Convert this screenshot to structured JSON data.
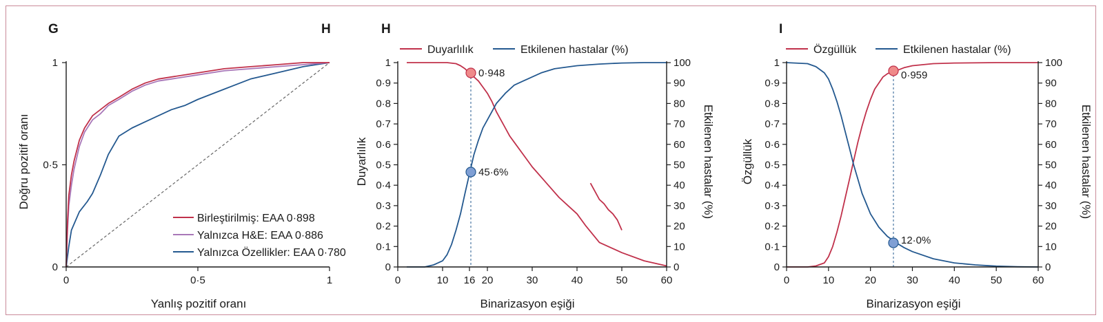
{
  "colors": {
    "red": "#c0304a",
    "purple": "#a877b8",
    "blue": "#23588f",
    "diag": "#666666",
    "marker_red": "#ef8a8a",
    "marker_blue": "#7f9fd4",
    "frame": "#c98a99"
  },
  "chart_data": [
    {
      "panel": "G",
      "type": "line",
      "title": "",
      "xlabel": "Yanlış pozitif oranı",
      "ylabel": "Doğru pozitif oranı",
      "xlim": [
        0,
        1
      ],
      "ylim": [
        0,
        1
      ],
      "xticks": [
        "0",
        "0·5",
        "1"
      ],
      "yticks": [
        "0",
        "0·5",
        "1"
      ],
      "legend_position": "bottom-right",
      "reference_line": "diagonal",
      "series": [
        {
          "name": "Birleştirilmiş: EAA 0·898",
          "color": "#c0304a",
          "x": [
            0,
            0.005,
            0.01,
            0.02,
            0.03,
            0.05,
            0.07,
            0.1,
            0.13,
            0.16,
            0.2,
            0.25,
            0.3,
            0.35,
            0.4,
            0.5,
            0.6,
            0.7,
            0.8,
            0.9,
            1.0
          ],
          "y": [
            0,
            0.22,
            0.35,
            0.45,
            0.52,
            0.62,
            0.68,
            0.74,
            0.77,
            0.8,
            0.83,
            0.87,
            0.9,
            0.92,
            0.93,
            0.95,
            0.97,
            0.98,
            0.99,
            1.0,
            1.0
          ]
        },
        {
          "name": "Yalnızca H&E: EAA 0·886",
          "color": "#a877b8",
          "x": [
            0,
            0.005,
            0.01,
            0.02,
            0.03,
            0.05,
            0.07,
            0.1,
            0.13,
            0.16,
            0.2,
            0.25,
            0.3,
            0.35,
            0.4,
            0.5,
            0.6,
            0.7,
            0.8,
            0.9,
            1.0
          ],
          "y": [
            0,
            0.18,
            0.3,
            0.4,
            0.48,
            0.59,
            0.66,
            0.72,
            0.75,
            0.79,
            0.82,
            0.86,
            0.89,
            0.91,
            0.92,
            0.94,
            0.96,
            0.97,
            0.98,
            0.99,
            1.0
          ]
        },
        {
          "name": "Yalnızca Özellikler: EAA 0·780",
          "color": "#23588f",
          "x": [
            0,
            0.01,
            0.02,
            0.05,
            0.08,
            0.1,
            0.13,
            0.16,
            0.2,
            0.25,
            0.3,
            0.35,
            0.4,
            0.45,
            0.5,
            0.6,
            0.7,
            0.8,
            0.9,
            1.0
          ],
          "y": [
            0,
            0.1,
            0.18,
            0.27,
            0.32,
            0.36,
            0.45,
            0.55,
            0.64,
            0.68,
            0.71,
            0.74,
            0.77,
            0.79,
            0.82,
            0.87,
            0.92,
            0.95,
            0.98,
            1.0
          ]
        }
      ]
    },
    {
      "panel": "H",
      "type": "line",
      "title": "",
      "xlabel": "Binarizasyon eşiği",
      "ylabel_left": "Duyarlılık",
      "ylabel_right": "Etkilenen hastalar (%)",
      "xlim": [
        0,
        60
      ],
      "ylim_left": [
        0,
        1
      ],
      "ylim_right": [
        0,
        100
      ],
      "xticks": [
        "0",
        "10",
        "16",
        "20",
        "30",
        "40",
        "50",
        "60"
      ],
      "yticks_left": [
        "0",
        "0·1",
        "0·2",
        "0·3",
        "0·4",
        "0·5",
        "0·6",
        "0·7",
        "0·8",
        "0·9",
        "1"
      ],
      "yticks_right": [
        "0",
        "10",
        "20",
        "30",
        "40",
        "50",
        "60",
        "70",
        "80",
        "90",
        "100"
      ],
      "legend_position": "top",
      "threshold": 16,
      "annotations": [
        "0·948",
        "45·6%"
      ],
      "series": [
        {
          "name": "Duyarlılık",
          "color": "#c0304a",
          "axis": "left",
          "x": [
            2,
            8,
            11,
            13,
            14,
            15,
            16,
            17,
            18,
            19,
            20,
            21,
            22,
            23,
            24,
            25,
            26,
            28,
            30,
            32,
            34,
            36,
            38,
            40,
            42,
            45,
            50,
            55,
            60
          ],
          "y": [
            1.0,
            1.0,
            1.0,
            0.995,
            0.985,
            0.97,
            0.948,
            0.93,
            0.91,
            0.88,
            0.85,
            0.81,
            0.76,
            0.72,
            0.68,
            0.64,
            0.61,
            0.55,
            0.49,
            0.44,
            0.39,
            0.34,
            0.3,
            0.26,
            0.2,
            0.12,
            0.07,
            0.03,
            0.005
          ]
        },
        {
          "name": "Duyarlılık",
          "color": "#c0304a",
          "axis": "left",
          "x": [
            43,
            44,
            45,
            46,
            47,
            48,
            49,
            50
          ],
          "y": [
            0.41,
            0.37,
            0.33,
            0.31,
            0.28,
            0.26,
            0.23,
            0.18
          ]
        },
        {
          "name": "Etkilenen hastalar (%)",
          "color": "#23588f",
          "axis": "right",
          "x": [
            2,
            6,
            8,
            10,
            11,
            12,
            13,
            14,
            15,
            16,
            17,
            18,
            19,
            20,
            21,
            22,
            24,
            26,
            28,
            30,
            32,
            35,
            40,
            45,
            50,
            55,
            60
          ],
          "y": [
            0,
            0,
            1,
            3,
            6,
            11,
            18,
            26,
            36,
            45.6,
            55,
            62,
            68,
            72,
            76,
            80,
            85,
            89,
            91,
            93,
            95,
            97,
            98.5,
            99.3,
            99.8,
            100,
            100
          ]
        }
      ]
    },
    {
      "panel": "I",
      "type": "line",
      "title": "",
      "xlabel": "Binarizasyon eşiği",
      "ylabel_left": "Özgüllük",
      "ylabel_right": "Etkilenen hastalar (%)",
      "xlim": [
        0,
        60
      ],
      "ylim_left": [
        0,
        1
      ],
      "ylim_right": [
        0,
        100
      ],
      "xticks": [
        "0",
        "10",
        "20",
        "30",
        "40",
        "50",
        "60"
      ],
      "yticks_left": [
        "0",
        "0·1",
        "0·2",
        "0·3",
        "0·4",
        "0·5",
        "0·6",
        "0·7",
        "0·8",
        "0·9",
        "1"
      ],
      "yticks_right": [
        "0",
        "10",
        "20",
        "30",
        "40",
        "50",
        "60",
        "70",
        "80",
        "90",
        "100"
      ],
      "legend_position": "top",
      "threshold": 26,
      "annotations": [
        "0·959",
        "12·0%"
      ],
      "series": [
        {
          "name": "Özgüllük",
          "color": "#c0304a",
          "axis": "left",
          "x": [
            0,
            5,
            7,
            9,
            10,
            11,
            12,
            13,
            14,
            15,
            16,
            17,
            18,
            19,
            20,
            21,
            22,
            23,
            24,
            25,
            26,
            28,
            30,
            35,
            40,
            50,
            60
          ],
          "y": [
            0,
            0,
            0.005,
            0.02,
            0.05,
            0.1,
            0.17,
            0.25,
            0.34,
            0.43,
            0.52,
            0.61,
            0.69,
            0.76,
            0.82,
            0.87,
            0.9,
            0.93,
            0.945,
            0.955,
            0.959,
            0.975,
            0.985,
            0.995,
            0.998,
            1.0,
            1.0
          ]
        },
        {
          "name": "Etkilenen hastalar (%)",
          "color": "#23588f",
          "axis": "right",
          "x": [
            0,
            5,
            7,
            9,
            10,
            11,
            12,
            13,
            14,
            15,
            16,
            17,
            18,
            19,
            20,
            22,
            24,
            26,
            28,
            30,
            35,
            40,
            45,
            50,
            55,
            60
          ],
          "y": [
            100,
            99.5,
            98,
            95,
            92,
            87,
            81,
            74,
            66,
            58,
            50,
            43,
            36,
            31,
            26,
            19.5,
            15,
            12,
            9.5,
            7.5,
            4,
            2,
            1,
            0.4,
            0.1,
            0
          ]
        }
      ]
    }
  ]
}
